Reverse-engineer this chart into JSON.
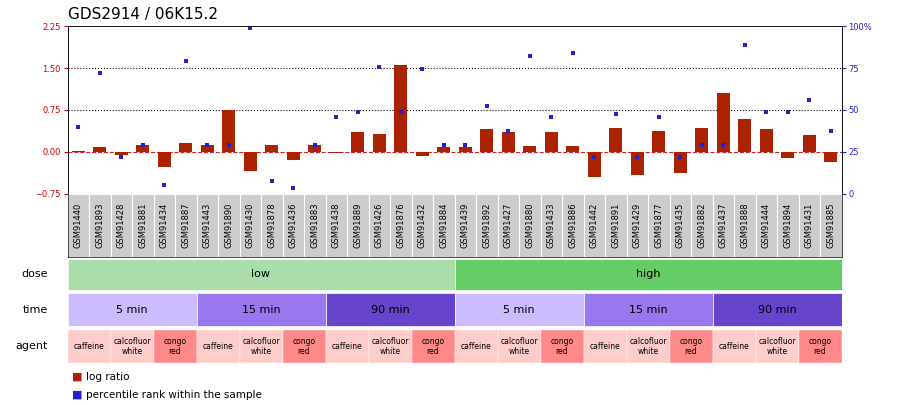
{
  "title": "GDS2914 / 06K15.2",
  "samples": [
    "GSM91440",
    "GSM91893",
    "GSM91428",
    "GSM91881",
    "GSM91434",
    "GSM91887",
    "GSM91443",
    "GSM91890",
    "GSM91430",
    "GSM91878",
    "GSM91436",
    "GSM91883",
    "GSM91438",
    "GSM91889",
    "GSM91426",
    "GSM91876",
    "GSM91432",
    "GSM91884",
    "GSM91439",
    "GSM91892",
    "GSM91427",
    "GSM91880",
    "GSM91433",
    "GSM91886",
    "GSM91442",
    "GSM91891",
    "GSM91429",
    "GSM91877",
    "GSM91435",
    "GSM91882",
    "GSM91437",
    "GSM91888",
    "GSM91444",
    "GSM91894",
    "GSM91431",
    "GSM91885"
  ],
  "log_ratio": [
    0.02,
    0.08,
    -0.05,
    0.12,
    -0.28,
    0.15,
    0.12,
    0.75,
    -0.35,
    0.13,
    -0.15,
    0.13,
    -0.02,
    0.35,
    0.32,
    1.55,
    -0.08,
    0.08,
    0.08,
    0.4,
    0.35,
    0.1,
    0.35,
    0.1,
    -0.45,
    0.42,
    -0.42,
    0.38,
    -0.38,
    0.42,
    1.05,
    0.58,
    0.4,
    -0.12,
    0.3,
    -0.18
  ],
  "percentile_y": [
    0.45,
    1.42,
    -0.09,
    0.12,
    -0.6,
    1.62,
    0.12,
    0.12,
    2.22,
    -0.52,
    -0.65,
    0.12,
    0.62,
    0.72,
    1.52,
    0.72,
    1.48,
    0.12,
    0.12,
    0.82,
    0.38,
    1.72,
    0.62,
    1.78,
    -0.09,
    0.68,
    -0.09,
    0.62,
    -0.09,
    0.12,
    0.12,
    1.92,
    0.72,
    0.72,
    0.92,
    0.38
  ],
  "ylim": [
    -0.75,
    2.25
  ],
  "yticks_left": [
    -0.75,
    0.0,
    0.75,
    1.5,
    2.25
  ],
  "ytick_pct": [
    0,
    25,
    50,
    75,
    100
  ],
  "hlines": [
    0.75,
    1.5
  ],
  "dose_groups": [
    {
      "label": "low",
      "start": 0,
      "end": 18,
      "color": "#aaddaa"
    },
    {
      "label": "high",
      "start": 18,
      "end": 36,
      "color": "#66cc66"
    }
  ],
  "time_groups": [
    {
      "label": "5 min",
      "start": 0,
      "end": 6,
      "color": "#ccbbff"
    },
    {
      "label": "15 min",
      "start": 6,
      "end": 12,
      "color": "#9977ee"
    },
    {
      "label": "90 min",
      "start": 12,
      "end": 18,
      "color": "#6644cc"
    },
    {
      "label": "5 min",
      "start": 18,
      "end": 24,
      "color": "#ccbbff"
    },
    {
      "label": "15 min",
      "start": 24,
      "end": 30,
      "color": "#9977ee"
    },
    {
      "label": "90 min",
      "start": 30,
      "end": 36,
      "color": "#6644cc"
    }
  ],
  "agent_groups": [
    {
      "label": "caffeine",
      "start": 0,
      "end": 2,
      "color": "#ffcccc"
    },
    {
      "label": "calcofluor\nwhite",
      "start": 2,
      "end": 4,
      "color": "#ffcccc"
    },
    {
      "label": "congo\nred",
      "start": 4,
      "end": 6,
      "color": "#ff8888"
    },
    {
      "label": "caffeine",
      "start": 6,
      "end": 8,
      "color": "#ffcccc"
    },
    {
      "label": "calcofluor\nwhite",
      "start": 8,
      "end": 10,
      "color": "#ffcccc"
    },
    {
      "label": "congo\nred",
      "start": 10,
      "end": 12,
      "color": "#ff8888"
    },
    {
      "label": "caffeine",
      "start": 12,
      "end": 14,
      "color": "#ffcccc"
    },
    {
      "label": "calcofluor\nwhite",
      "start": 14,
      "end": 16,
      "color": "#ffcccc"
    },
    {
      "label": "congo\nred",
      "start": 16,
      "end": 18,
      "color": "#ff8888"
    },
    {
      "label": "caffeine",
      "start": 18,
      "end": 20,
      "color": "#ffcccc"
    },
    {
      "label": "calcofluor\nwhite",
      "start": 20,
      "end": 22,
      "color": "#ffcccc"
    },
    {
      "label": "congo\nred",
      "start": 22,
      "end": 24,
      "color": "#ff8888"
    },
    {
      "label": "caffeine",
      "start": 24,
      "end": 26,
      "color": "#ffcccc"
    },
    {
      "label": "calcofluor\nwhite",
      "start": 26,
      "end": 28,
      "color": "#ffcccc"
    },
    {
      "label": "congo\nred",
      "start": 28,
      "end": 30,
      "color": "#ff8888"
    },
    {
      "label": "caffeine",
      "start": 30,
      "end": 32,
      "color": "#ffcccc"
    },
    {
      "label": "calcofluor\nwhite",
      "start": 32,
      "end": 34,
      "color": "#ffcccc"
    },
    {
      "label": "congo\nred",
      "start": 34,
      "end": 36,
      "color": "#ff8888"
    }
  ],
  "bar_color": "#aa2200",
  "scatter_color": "#2222cc",
  "zero_line_color": "#cc2222",
  "xtick_bg": "#cccccc",
  "xtick_border": "#ffffff",
  "n_samples": 36,
  "title_fontsize": 11,
  "tick_fontsize": 6,
  "row_label_fontsize": 8,
  "annot_fontsize": 8,
  "agent_fontsize": 5.5,
  "legend_fontsize": 7.5
}
